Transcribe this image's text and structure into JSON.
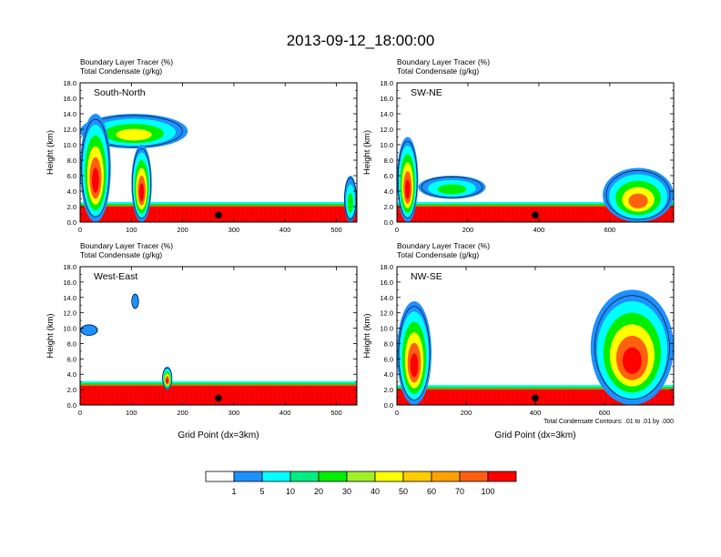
{
  "title": "2013-09-12_18:00:00",
  "colorbar": {
    "colors": [
      "#ffffff",
      "#1e90ff",
      "#00ffff",
      "#00ee80",
      "#00ee00",
      "#a0f028",
      "#ffff00",
      "#ffcc00",
      "#ffa000",
      "#ff6010",
      "#ff0000"
    ],
    "labels": [
      "1",
      "5",
      "10",
      "20",
      "30",
      "40",
      "50",
      "60",
      "70",
      "100"
    ]
  },
  "contour_note": "Total Condensate Contours: .01 to .01 by .000",
  "palette": {
    "red": "#ff0000",
    "orange": "#ff6010",
    "yellow": "#ffff00",
    "green": "#00ee00",
    "cyan": "#00ffff",
    "blue": "#1e90ff"
  },
  "chart_data": [
    {
      "type": "heatmap",
      "panel": "South-North",
      "title_line1": "Boundary Layer Tracer   (%)",
      "title_line2": "Total Condensate   (g/kg)",
      "ylabel": "Height (km)",
      "xlabel": "",
      "xlim": [
        0,
        540
      ],
      "ylim": [
        0,
        18
      ],
      "xticks": [
        0,
        100,
        200,
        300,
        400,
        500
      ],
      "yticks": [
        "0.0",
        "2.0",
        "4.0",
        "6.0",
        "8.0",
        "10.0",
        "12.0",
        "14.0",
        "16.0",
        "18.0"
      ],
      "marker_x": 270,
      "boundary_layer_top_km": 2.0,
      "cloud_features": [
        {
          "x": [
            0,
            210
          ],
          "z": [
            9.5,
            14
          ],
          "level": 30
        },
        {
          "x": [
            0,
            60
          ],
          "z": [
            0,
            14
          ],
          "level": 60
        },
        {
          "x": [
            100,
            140
          ],
          "z": [
            0,
            10
          ],
          "level": 70
        },
        {
          "x": [
            515,
            540
          ],
          "z": [
            0,
            6
          ],
          "level": 20
        }
      ]
    },
    {
      "type": "heatmap",
      "panel": "SW-NE",
      "title_line1": "Boundary Layer Tracer   (%)",
      "title_line2": "Total Condensate   (g/kg)",
      "ylabel": "Height (km)",
      "xlabel": "",
      "xlim": [
        0,
        780
      ],
      "ylim": [
        0,
        18
      ],
      "xticks": [
        0,
        200,
        400,
        600
      ],
      "yticks": [
        "0.0",
        "2.0",
        "4.0",
        "6.0",
        "8.0",
        "10.0",
        "12.0",
        "14.0",
        "16.0",
        "18.0"
      ],
      "marker_x": 390,
      "boundary_layer_top_km": 2.0,
      "cloud_features": [
        {
          "x": [
            0,
            60
          ],
          "z": [
            0,
            11
          ],
          "level": 50
        },
        {
          "x": [
            60,
            250
          ],
          "z": [
            3,
            6
          ],
          "level": 20
        },
        {
          "x": [
            580,
            780
          ],
          "z": [
            0,
            7
          ],
          "level": 40
        }
      ]
    },
    {
      "type": "heatmap",
      "panel": "West-East",
      "title_line1": "Boundary Layer Tracer   (%)",
      "title_line2": "Total Condensate   (g/kg)",
      "ylabel": "Height (km)",
      "xlabel": "Grid Point (dx=3km)",
      "xlim": [
        0,
        540
      ],
      "ylim": [
        0,
        18
      ],
      "xticks": [
        0,
        100,
        200,
        300,
        400,
        500
      ],
      "yticks": [
        "0.0",
        "2.0",
        "4.0",
        "6.0",
        "8.0",
        "10.0",
        "12.0",
        "14.0",
        "16.0",
        "18.0"
      ],
      "marker_x": 270,
      "boundary_layer_top_km": 2.5,
      "cloud_features": [
        {
          "x": [
            0,
            35
          ],
          "z": [
            9,
            10.5
          ],
          "level": 5
        },
        {
          "x": [
            100,
            115
          ],
          "z": [
            12.5,
            14.5
          ],
          "level": 5
        },
        {
          "x": [
            160,
            180
          ],
          "z": [
            2,
            5
          ],
          "level": 50
        }
      ]
    },
    {
      "type": "heatmap",
      "panel": "NW-SE",
      "title_line1": "Boundary Layer Tracer   (%)",
      "title_line2": "Total Condensate   (g/kg)",
      "ylabel": "Height (km)",
      "xlabel": "Grid Point (dx=3km)",
      "xlim": [
        0,
        800
      ],
      "ylim": [
        0,
        18
      ],
      "xticks": [
        0,
        200,
        400,
        600
      ],
      "yticks": [
        "0.0",
        "2.0",
        "4.0",
        "6.0",
        "8.0",
        "10.0",
        "12.0",
        "14.0",
        "16.0",
        "18.0"
      ],
      "marker_x": 400,
      "boundary_layer_top_km": 2.0,
      "cloud_features": [
        {
          "x": [
            0,
            100
          ],
          "z": [
            0,
            13.5
          ],
          "level": 50
        },
        {
          "x": [
            560,
            800
          ],
          "z": [
            0,
            15
          ],
          "level": 60
        }
      ]
    }
  ]
}
